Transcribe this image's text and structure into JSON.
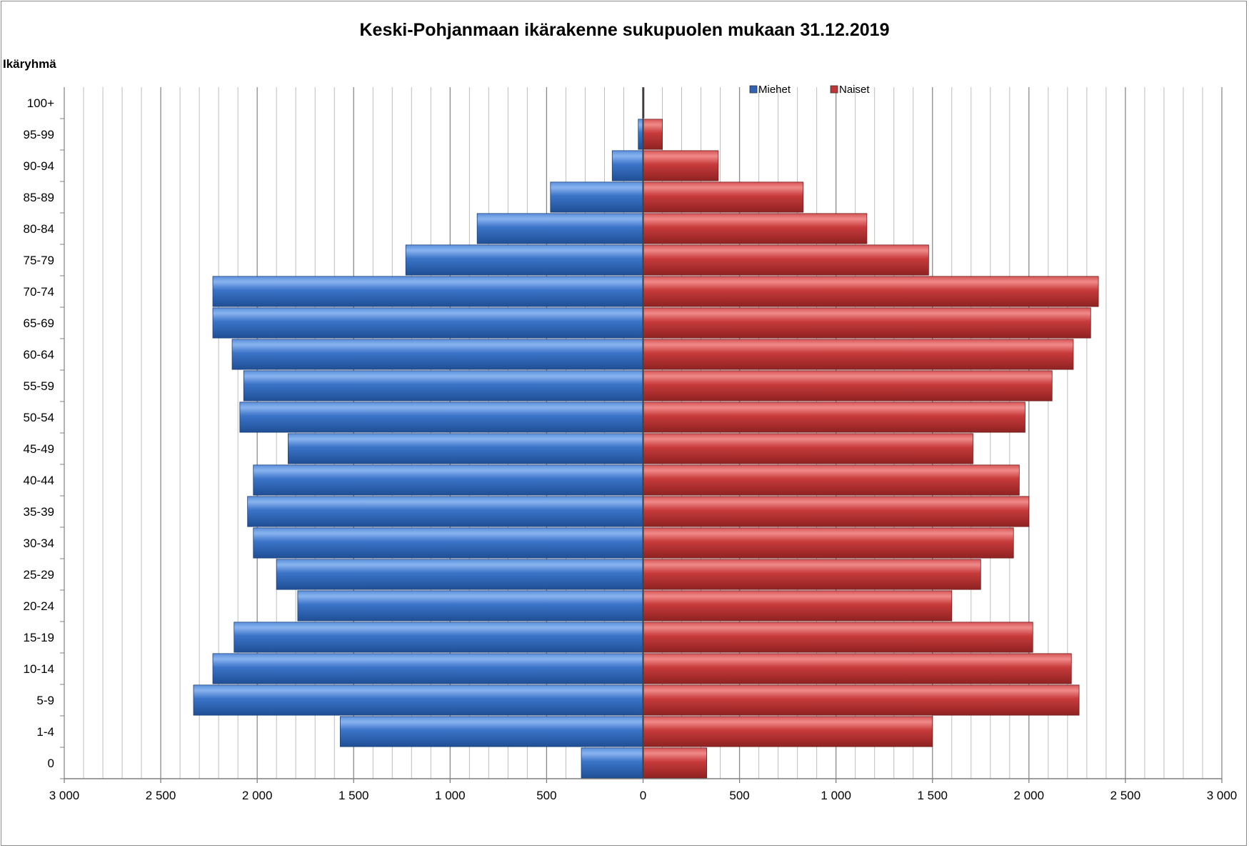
{
  "chart_data": {
    "type": "bar",
    "orientation": "horizontal",
    "title": "Keski-Pohjanmaan ikärakenne sukupuolen mukaan 31.12.2019",
    "ylabel": "Ikäryhmä",
    "xlabel": "",
    "categories": [
      "0",
      "1-4",
      "5-9",
      "10-14",
      "15-19",
      "20-24",
      "25-29",
      "30-34",
      "35-39",
      "40-44",
      "45-49",
      "50-54",
      "55-59",
      "60-64",
      "65-69",
      "70-74",
      "75-79",
      "80-84",
      "85-89",
      "90-94",
      "95-99",
      "100+"
    ],
    "series": [
      {
        "name": "Miehet",
        "color": "#3b72c4",
        "values": [
          320,
          1570,
          2330,
          2230,
          2120,
          1790,
          1900,
          2020,
          2050,
          2020,
          1840,
          2090,
          2070,
          2130,
          2230,
          2230,
          1230,
          860,
          480,
          160,
          25,
          3
        ]
      },
      {
        "name": "Naiset",
        "color": "#c83a3a",
        "values": [
          330,
          1500,
          2260,
          2220,
          2020,
          1600,
          1750,
          1920,
          2000,
          1950,
          1710,
          1980,
          2120,
          2230,
          2320,
          2360,
          1480,
          1160,
          830,
          390,
          100,
          5
        ]
      }
    ],
    "xlim": [
      -3000,
      3000
    ],
    "xticks": [
      -3000,
      -2500,
      -2000,
      -1500,
      -1000,
      -500,
      0,
      500,
      1000,
      1500,
      2000,
      2500,
      3000
    ],
    "xtick_labels": [
      "3 000",
      "2 500",
      "2 000",
      "1 500",
      "1 000",
      "500",
      "0",
      "500",
      "1 000",
      "1 500",
      "2 000",
      "2 500",
      "3 000"
    ],
    "minor_grid_step": 100,
    "grid": true,
    "legend_position": "top-right"
  }
}
